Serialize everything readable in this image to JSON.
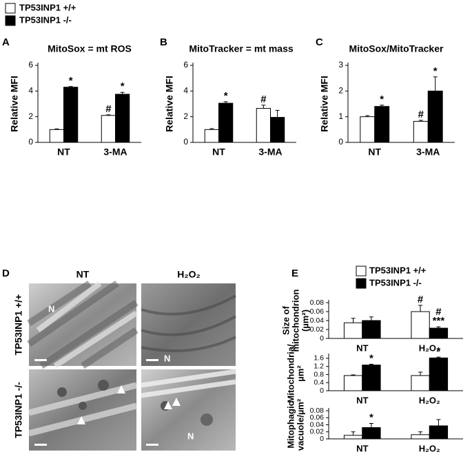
{
  "chart_data": [
    {
      "type": "bar",
      "panel_label": "A",
      "title": "MitoSox = mt ROS",
      "ylabel": [
        "Relative MFI"
      ],
      "categories": [
        "NT",
        "3-MA"
      ],
      "series": [
        {
          "name": "TP53INP1 +/+",
          "color": "#ffffff",
          "values": [
            1.0,
            2.1
          ],
          "errors": [
            0.05,
            0.05
          ]
        },
        {
          "name": "TP53INP1 -/-",
          "color": "#000000",
          "values": [
            4.3,
            3.75
          ],
          "errors": [
            0.05,
            0.15
          ]
        }
      ],
      "ylim": [
        0,
        6
      ],
      "yticks": [
        0,
        2,
        4,
        6
      ],
      "annotations": [
        {
          "text": "*",
          "series": 1,
          "category": 0
        },
        {
          "text": "#",
          "series": 0,
          "category": 1
        },
        {
          "text": "*",
          "series": 1,
          "category": 1
        }
      ]
    },
    {
      "type": "bar",
      "panel_label": "B",
      "title": "MitoTracker = mt mass",
      "ylabel": [
        "Relative MFI"
      ],
      "categories": [
        "NT",
        "3-MA"
      ],
      "series": [
        {
          "name": "TP53INP1 +/+",
          "color": "#ffffff",
          "values": [
            1.0,
            2.65
          ],
          "errors": [
            0.07,
            0.25
          ]
        },
        {
          "name": "TP53INP1 -/-",
          "color": "#000000",
          "values": [
            3.05,
            1.95
          ],
          "errors": [
            0.12,
            0.55
          ]
        }
      ],
      "ylim": [
        0,
        6
      ],
      "yticks": [
        0,
        2,
        4,
        6
      ],
      "annotations": [
        {
          "text": "*",
          "series": 1,
          "category": 0
        },
        {
          "text": "#",
          "series": 0,
          "category": 1
        }
      ]
    },
    {
      "type": "bar",
      "panel_label": "C",
      "title": "MitoSox/MitoTracker",
      "ylabel": [
        "Relative MFI"
      ],
      "categories": [
        "NT",
        "3-MA"
      ],
      "series": [
        {
          "name": "TP53INP1 +/+",
          "color": "#ffffff",
          "values": [
            1.0,
            0.82
          ],
          "errors": [
            0.04,
            0.04
          ]
        },
        {
          "name": "TP53INP1 -/-",
          "color": "#000000",
          "values": [
            1.4,
            2.0
          ],
          "errors": [
            0.05,
            0.55
          ]
        }
      ],
      "ylim": [
        0,
        3
      ],
      "yticks": [
        0,
        1,
        2,
        3
      ],
      "annotations": [
        {
          "text": "*",
          "series": 1,
          "category": 0
        },
        {
          "text": "#",
          "series": 0,
          "category": 1
        },
        {
          "text": "*",
          "series": 1,
          "category": 1
        }
      ]
    },
    {
      "type": "bar",
      "panel_label": "E",
      "ylabel": [
        "Size of",
        "mitochondrion",
        "(µm²)"
      ],
      "categories": [
        "NT",
        "H₂O₂"
      ],
      "series": [
        {
          "name": "TP53INP1 +/+",
          "color": "#ffffff",
          "values": [
            0.035,
            0.06
          ],
          "errors": [
            0.01,
            0.014
          ]
        },
        {
          "name": "TP53INP1 -/-",
          "color": "#000000",
          "values": [
            0.04,
            0.023
          ],
          "errors": [
            0.008,
            0.003
          ]
        }
      ],
      "ylim": [
        0,
        0.08
      ],
      "yticks": [
        0,
        0.02,
        0.04,
        0.06,
        0.08
      ],
      "annotations": [
        {
          "text": "#",
          "series": 0,
          "category": 1
        },
        {
          "text": "***",
          "series": 1,
          "category": 1
        },
        {
          "text": "#",
          "series": 1,
          "category": 1
        }
      ]
    },
    {
      "type": "bar",
      "ylabel": [
        "Mitochondria/",
        "µm²"
      ],
      "categories": [
        "NT",
        "H₂O₂"
      ],
      "series": [
        {
          "name": "TP53INP1 +/+",
          "color": "#ffffff",
          "values": [
            0.75,
            0.75
          ],
          "errors": [
            0.03,
            0.17
          ]
        },
        {
          "name": "TP53INP1 -/-",
          "color": "#000000",
          "values": [
            1.27,
            1.62
          ],
          "errors": [
            0.04,
            0.04
          ]
        }
      ],
      "ylim": [
        0,
        1.7
      ],
      "yticks": [
        0,
        0.4,
        0.8,
        1.2,
        1.6
      ],
      "annotations": [
        {
          "text": "*",
          "series": 1,
          "category": 0
        },
        {
          "text": "*",
          "series": 1,
          "category": 1
        }
      ]
    },
    {
      "type": "bar",
      "ylabel": [
        "Mitophagic",
        "vacuole/µm²"
      ],
      "categories": [
        "NT",
        "H₂O₂"
      ],
      "series": [
        {
          "name": "TP53INP1 +/+",
          "color": "#ffffff",
          "values": [
            0.01,
            0.012
          ],
          "errors": [
            0.01,
            0.008
          ]
        },
        {
          "name": "TP53INP1 -/-",
          "color": "#000000",
          "values": [
            0.032,
            0.037
          ],
          "errors": [
            0.012,
            0.018
          ]
        }
      ],
      "ylim": [
        0,
        0.08
      ],
      "yticks": [
        0,
        0.02,
        0.04,
        0.06,
        0.08
      ],
      "annotations": [
        {
          "text": "*",
          "series": 1,
          "category": 0
        }
      ]
    }
  ],
  "micrographs": {
    "panel_label": "D",
    "columns": [
      "NT",
      "H₂O₂"
    ],
    "rows": [
      "TP53INP1 +/+",
      "TP53INP1 -/-"
    ],
    "nucleus_label": "N"
  }
}
